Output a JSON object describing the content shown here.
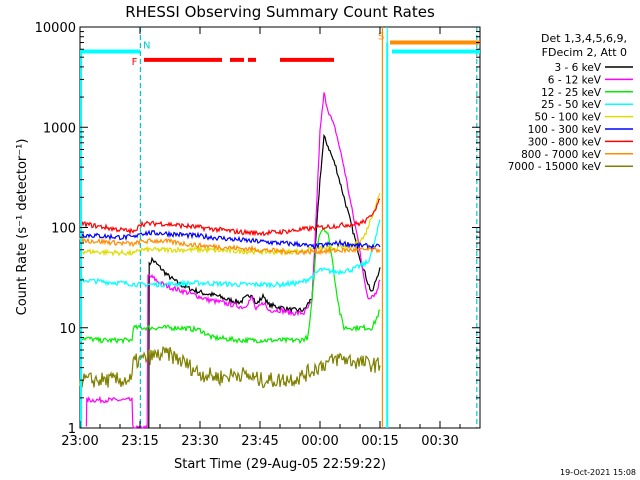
{
  "chart_data": {
    "type": "line",
    "title": "RHESSI Observing Summary Count Rates",
    "xlabel": "Start Time (29-Aug-05 22:59:22)",
    "ylabel": "Count Rate (s⁻¹ detector⁻¹)",
    "yscale": "log",
    "ylim": [
      1,
      10000
    ],
    "xlim_minutes": [
      0,
      100
    ],
    "x_ticks": [
      {
        "label": "23:00",
        "min": 0
      },
      {
        "label": "23:15",
        "min": 15
      },
      {
        "label": "23:30",
        "min": 30
      },
      {
        "label": "23:45",
        "min": 45
      },
      {
        "label": "00:00",
        "min": 60
      },
      {
        "label": "00:15",
        "min": 75
      },
      {
        "label": "00:30",
        "min": 90
      }
    ],
    "y_ticks": [
      {
        "label": "1",
        "v": 1
      },
      {
        "label": "10",
        "v": 10
      },
      {
        "label": "100",
        "v": 100
      },
      {
        "label": "1000",
        "v": 1000
      },
      {
        "label": "10000",
        "v": 10000
      }
    ],
    "legend_header": [
      "Det 1,3,4,5,6,9,",
      "FDecim 2, Att 0"
    ],
    "legend_position": "right",
    "series": [
      {
        "name": "3 - 6 keV",
        "color": "#000000",
        "points": [
          [
            17.2,
            1
          ],
          [
            17.3,
            42
          ],
          [
            18,
            48
          ],
          [
            20,
            40
          ],
          [
            22,
            33
          ],
          [
            25,
            27
          ],
          [
            28,
            24
          ],
          [
            31,
            22
          ],
          [
            34,
            21
          ],
          [
            37,
            19
          ],
          [
            40,
            18
          ],
          [
            43,
            22
          ],
          [
            44,
            17
          ],
          [
            46,
            21
          ],
          [
            47,
            17
          ],
          [
            50,
            16
          ],
          [
            53,
            15
          ],
          [
            56,
            15
          ],
          [
            58,
            20
          ],
          [
            59,
            80
          ],
          [
            60,
            300
          ],
          [
            61,
            800
          ],
          [
            62,
            650
          ],
          [
            64,
            400
          ],
          [
            66,
            200
          ],
          [
            68,
            100
          ],
          [
            70,
            50
          ],
          [
            72,
            28
          ],
          [
            73,
            22
          ],
          [
            74,
            30
          ],
          [
            75,
            40
          ]
        ]
      },
      {
        "name": "6 - 12 keV",
        "color": "#ff00ff",
        "points": [
          [
            1.6,
            1
          ],
          [
            1.7,
            1.9
          ],
          [
            13,
            1.9
          ],
          [
            13.2,
            1
          ],
          [
            16.8,
            1
          ],
          [
            17,
            33
          ],
          [
            18,
            32
          ],
          [
            20,
            28
          ],
          [
            23,
            25
          ],
          [
            26,
            23
          ],
          [
            29,
            21
          ],
          [
            32,
            19
          ],
          [
            35,
            18
          ],
          [
            38,
            17
          ],
          [
            41,
            16
          ],
          [
            43,
            20
          ],
          [
            44,
            15
          ],
          [
            46,
            18
          ],
          [
            47,
            15
          ],
          [
            50,
            15
          ],
          [
            53,
            14
          ],
          [
            56,
            14
          ],
          [
            58,
            18
          ],
          [
            59,
            120
          ],
          [
            60,
            900
          ],
          [
            61,
            2150
          ],
          [
            62,
            1500
          ],
          [
            64,
            900
          ],
          [
            66,
            400
          ],
          [
            68,
            150
          ],
          [
            70,
            60
          ],
          [
            71,
            30
          ],
          [
            72,
            20
          ],
          [
            74,
            22
          ],
          [
            75,
            30
          ]
        ]
      },
      {
        "name": "12 - 25 keV",
        "color": "#00ee00",
        "points": [
          [
            0,
            8
          ],
          [
            5,
            7.5
          ],
          [
            10,
            7.5
          ],
          [
            13,
            7.5
          ],
          [
            13.3,
            10
          ],
          [
            15,
            10
          ],
          [
            20,
            10
          ],
          [
            25,
            10
          ],
          [
            30,
            9.5
          ],
          [
            33,
            8
          ],
          [
            40,
            7.5
          ],
          [
            45,
            7.5
          ],
          [
            50,
            7.5
          ],
          [
            55,
            7.5
          ],
          [
            57,
            8
          ],
          [
            58,
            18
          ],
          [
            59,
            60
          ],
          [
            60,
            90
          ],
          [
            61,
            100
          ],
          [
            62,
            85
          ],
          [
            63,
            50
          ],
          [
            64,
            25
          ],
          [
            65,
            14
          ],
          [
            66,
            10
          ],
          [
            70,
            10
          ],
          [
            73,
            10
          ],
          [
            74,
            12
          ],
          [
            75,
            15
          ]
        ]
      },
      {
        "name": "25 - 50 keV",
        "color": "#00ffff",
        "points": [
          [
            0,
            30
          ],
          [
            10,
            28
          ],
          [
            15,
            27
          ],
          [
            20,
            27
          ],
          [
            30,
            28
          ],
          [
            40,
            27
          ],
          [
            50,
            27
          ],
          [
            55,
            28
          ],
          [
            58,
            32
          ],
          [
            60,
            38
          ],
          [
            64,
            36
          ],
          [
            68,
            38
          ],
          [
            72,
            45
          ],
          [
            74,
            80
          ],
          [
            75,
            120
          ]
        ]
      },
      {
        "name": "50 - 100 keV",
        "color": "#dddd00",
        "points": [
          [
            0,
            58
          ],
          [
            10,
            56
          ],
          [
            14,
            55
          ],
          [
            14.5,
            60
          ],
          [
            20,
            60
          ],
          [
            30,
            60
          ],
          [
            40,
            58
          ],
          [
            50,
            57
          ],
          [
            55,
            58
          ],
          [
            60,
            62
          ],
          [
            64,
            62
          ],
          [
            68,
            65
          ],
          [
            71,
            80
          ],
          [
            73,
            130
          ],
          [
            75,
            220
          ]
        ]
      },
      {
        "name": "100 - 300 keV",
        "color": "#0000ff",
        "points": [
          [
            0,
            85
          ],
          [
            10,
            80
          ],
          [
            14,
            80
          ],
          [
            14.5,
            88
          ],
          [
            20,
            88
          ],
          [
            30,
            82
          ],
          [
            40,
            75
          ],
          [
            50,
            70
          ],
          [
            55,
            68
          ],
          [
            58,
            64
          ],
          [
            60,
            66
          ],
          [
            65,
            70
          ],
          [
            70,
            66
          ],
          [
            75,
            64
          ]
        ]
      },
      {
        "name": "300 - 800 keV",
        "color": "#ff0000",
        "points": [
          [
            0,
            110
          ],
          [
            10,
            95
          ],
          [
            14,
            90
          ],
          [
            14.5,
            108
          ],
          [
            20,
            110
          ],
          [
            30,
            100
          ],
          [
            40,
            90
          ],
          [
            45,
            88
          ],
          [
            50,
            90
          ],
          [
            55,
            95
          ],
          [
            60,
            100
          ],
          [
            65,
            105
          ],
          [
            70,
            110
          ],
          [
            72,
            120
          ],
          [
            74,
            160
          ],
          [
            75,
            190
          ]
        ]
      },
      {
        "name": "800 - 7000 keV",
        "color": "#ff8c00",
        "points": [
          [
            0,
            75
          ],
          [
            10,
            70
          ],
          [
            14,
            68
          ],
          [
            14.5,
            72
          ],
          [
            20,
            74
          ],
          [
            30,
            66
          ],
          [
            40,
            62
          ],
          [
            50,
            58
          ],
          [
            55,
            57
          ],
          [
            60,
            58
          ],
          [
            70,
            60
          ],
          [
            75,
            60
          ]
        ]
      },
      {
        "name": "7000 - 15000 keV",
        "color": "#808000",
        "points": [
          [
            0,
            3
          ],
          [
            13,
            3
          ],
          [
            13.3,
            4.5
          ],
          [
            18,
            5.2
          ],
          [
            22,
            5.5
          ],
          [
            26,
            4.5
          ],
          [
            30,
            3.5
          ],
          [
            35,
            3.2
          ],
          [
            40,
            3.5
          ],
          [
            45,
            3
          ],
          [
            50,
            3
          ],
          [
            55,
            3.2
          ],
          [
            60,
            4.2
          ],
          [
            65,
            5
          ],
          [
            70,
            4.5
          ],
          [
            75,
            4.2
          ]
        ]
      }
    ],
    "annotations": [
      {
        "label": "N",
        "type": "flag",
        "color": "#00cccc",
        "min": 15,
        "y": 5700
      },
      {
        "label": "F",
        "type": "flag",
        "color": "#ff0000",
        "min": 15.4,
        "y": 4600
      },
      {
        "label": "S",
        "type": "flag",
        "color": "#ff8c00",
        "min": 77,
        "y": 7000
      }
    ],
    "flag_bars": [
      {
        "name": "night",
        "color": "#00ffff",
        "y": 5700,
        "ranges": [
          [
            0,
            15
          ],
          [
            78,
            100
          ]
        ]
      },
      {
        "name": "flare",
        "color": "#ff0000",
        "y": 4700,
        "ranges": [
          [
            16,
            35.5
          ],
          [
            37.5,
            41
          ],
          [
            42,
            44
          ],
          [
            50,
            63.5
          ]
        ]
      },
      {
        "name": "saa",
        "color": "#ff8c00",
        "y": 7000,
        "ranges": [
          [
            77.5,
            100
          ]
        ]
      }
    ],
    "vlines": [
      {
        "min": 15.1,
        "color": "#00cccc",
        "dashed": true
      },
      {
        "min": 75.6,
        "color": "#ff8c00",
        "dashed": false
      },
      {
        "min": 76.8,
        "color": "#00ffff",
        "dashed": false
      },
      {
        "min": 99.2,
        "color": "#00cccc",
        "dashed": true
      }
    ],
    "datestamp": "19-Oct-2021 15:08"
  }
}
